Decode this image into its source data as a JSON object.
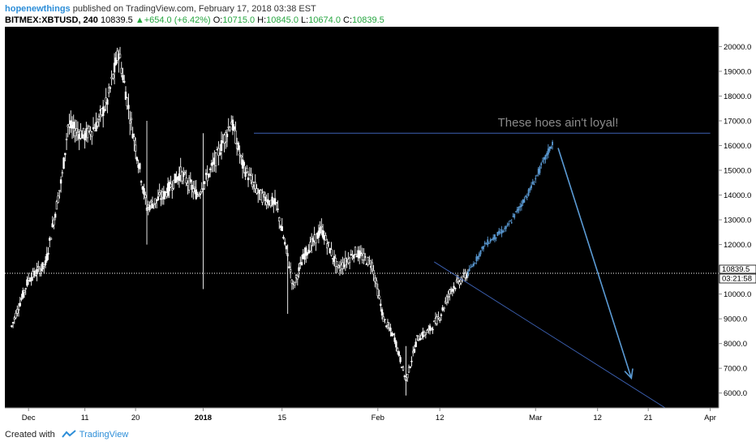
{
  "header": {
    "author": "hopenewthings",
    "published_text": "published on TradingView.com, February 17, 2018 03:38 EST",
    "symbol": "BITMEX:XBTUSD, 240",
    "last": "10839.5",
    "change": "+654.0 (+6.42%)",
    "o_label": "O:",
    "o_value": "10715.0",
    "h_label": "H:",
    "h_value": "10845.0",
    "l_label": "L:",
    "l_value": "10674.0",
    "c_label": "C:",
    "c_value": "10839.5"
  },
  "footer": {
    "created_with": "Created with",
    "brand": "TradingView"
  },
  "colors": {
    "background": "#000000",
    "candles": "#ffffff",
    "projection": "#5b9bd5",
    "annotation_line": "#3d62b5",
    "annotation_text": "#8a8a8a",
    "price_line": "#ffffff",
    "axis_text": "#000000"
  },
  "chart_data": {
    "type": "line",
    "title": "",
    "xlabel": "",
    "ylabel": "",
    "ylim": [
      5400,
      20800
    ],
    "x_tick_labels": [
      "Dec",
      "11",
      "20",
      "2018",
      "15",
      "Feb",
      "12",
      "Mar",
      "12",
      "21",
      "Apr"
    ],
    "y_tick_labels": [
      "6000.0",
      "7000.0",
      "8000.0",
      "9000.0",
      "10000.0",
      "11000.0",
      "12000.0",
      "13000.0",
      "14000.0",
      "15000.0",
      "16000.0",
      "17000.0",
      "18000.0",
      "19000.0",
      "20000.0"
    ],
    "current_price": "10839.5",
    "countdown": "03:21:58",
    "annotation_text": "These hoes ain't loyal!",
    "resistance_level": 16500,
    "series": [
      {
        "role": "price",
        "x": [
          "Nov 28",
          "Dec 1",
          "Dec 4",
          "Dec 7",
          "Dec 8",
          "Dec 11",
          "Dec 13",
          "Dec 15",
          "Dec 17",
          "Dec 19",
          "Dec 22",
          "Dec 25",
          "Dec 28",
          "Dec 31",
          "Jan 3",
          "Jan 6",
          "Jan 8",
          "Jan 11",
          "Jan 14",
          "Jan 16",
          "Jan 17",
          "Jan 19",
          "Jan 22",
          "Jan 25",
          "Jan 28",
          "Jan 31",
          "Feb 2",
          "Feb 4",
          "Feb 6",
          "Feb 8",
          "Feb 10",
          "Feb 12",
          "Feb 14",
          "Feb 17"
        ],
        "values": [
          8700,
          10600,
          11200,
          14800,
          16800,
          16400,
          16800,
          17800,
          19800,
          17200,
          13500,
          14000,
          14900,
          14000,
          15300,
          17000,
          15200,
          14000,
          13600,
          11500,
          10300,
          11600,
          12600,
          11000,
          11700,
          11200,
          9000,
          8200,
          6500,
          8200,
          8500,
          9100,
          10200,
          10840
        ]
      },
      {
        "role": "projection",
        "x": [
          "Feb 17",
          "Feb 20",
          "Feb 24",
          "Feb 28",
          "Mar 4"
        ],
        "values": [
          10840,
          12000,
          12700,
          14200,
          16100
        ]
      },
      {
        "role": "arrow",
        "x": [
          "Mar 5",
          "Mar 18"
        ],
        "values": [
          15900,
          6600
        ]
      }
    ]
  }
}
